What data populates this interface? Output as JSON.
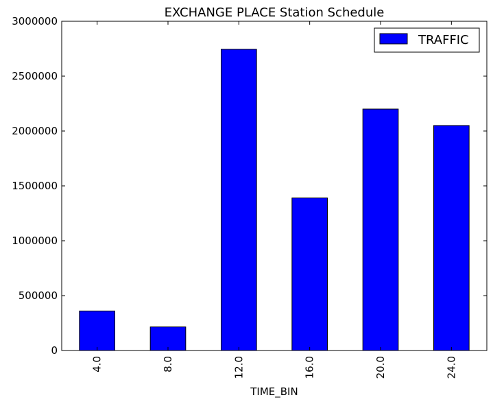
{
  "chart_data": {
    "type": "bar",
    "title": "EXCHANGE PLACE Station Schedule",
    "xlabel": "TIME_BIN",
    "ylabel": "",
    "categories": [
      "4.0",
      "8.0",
      "12.0",
      "16.0",
      "20.0",
      "24.0"
    ],
    "series": [
      {
        "name": "TRAFFIC",
        "values": [
          360000,
          215000,
          2745000,
          1390000,
          2200000,
          2050000
        ],
        "color": "#0000ff"
      }
    ],
    "ylim": [
      0,
      3000000
    ],
    "yticks": [
      0,
      500000,
      1000000,
      1500000,
      2000000,
      2500000,
      3000000
    ],
    "ytick_labels": [
      "0",
      "500000",
      "1000000",
      "1500000",
      "2000000",
      "2500000",
      "3000000"
    ],
    "grid": false,
    "legend_position": "top-right",
    "x_tick_rotation": "vertical"
  }
}
